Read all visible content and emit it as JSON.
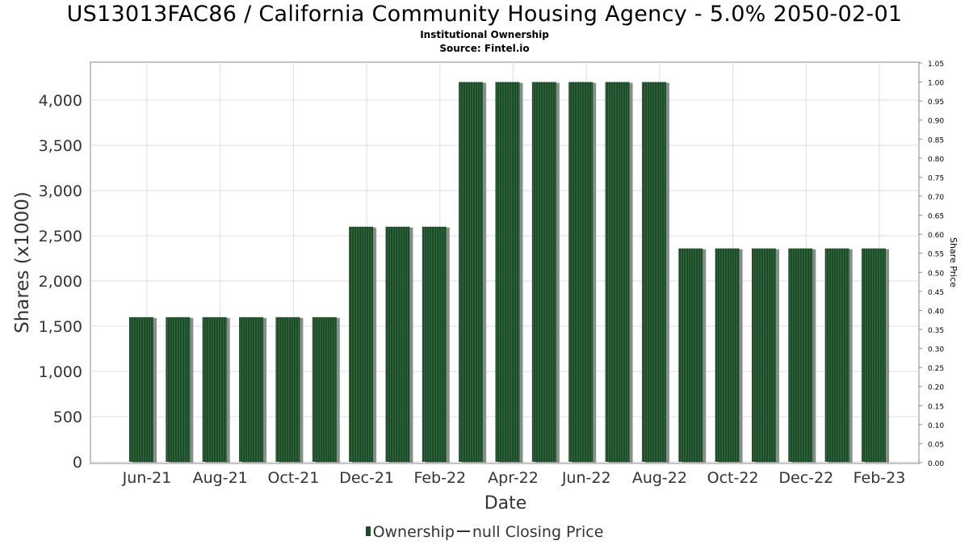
{
  "title": "US13013FAC86 / California Community Housing Agency - 5.0% 2050-02-01",
  "subtitle": "Institutional Ownership",
  "source": "Source: Fintel.io",
  "legend": {
    "ownership_label": "Ownership",
    "price_label": "null Closing Price"
  },
  "colors": {
    "bar": "#1f4a2a",
    "bar_stripe": "#2e6b3c",
    "bar_shadow": "#8c8c8c",
    "grid": "#dddddd"
  },
  "chart_data": {
    "type": "bar",
    "title": "US13013FAC86 / California Community Housing Agency - 5.0% 2050-02-01",
    "xlabel": "Date",
    "ylabel": "Shares (x1000)",
    "y2label": "Share Price",
    "ylim": [
      0,
      4400
    ],
    "y2lim": [
      0,
      1.05
    ],
    "yticks": [
      "0",
      "500",
      "1,000",
      "1,500",
      "2,000",
      "2,500",
      "3,000",
      "3,500",
      "4,000"
    ],
    "y2ticks": [
      "0.00",
      "0.05",
      "0.10",
      "0.15",
      "0.20",
      "0.25",
      "0.30",
      "0.35",
      "0.40",
      "0.45",
      "0.50",
      "0.55",
      "0.60",
      "0.65",
      "0.70",
      "0.75",
      "0.80",
      "0.85",
      "0.90",
      "0.95",
      "1.00",
      "1.05"
    ],
    "xticks": [
      "Jun-21",
      "Aug-21",
      "Oct-21",
      "Dec-21",
      "Feb-22",
      "Apr-22",
      "Jun-22",
      "Aug-22",
      "Oct-22",
      "Dec-22",
      "Feb-23"
    ],
    "grid": true,
    "legend_position": "bottom",
    "series": [
      {
        "name": "Ownership",
        "values": [
          1600,
          1600,
          1600,
          1600,
          1600,
          1600,
          2600,
          2600,
          2600,
          4200,
          4200,
          4200,
          4200,
          4200,
          4200,
          2360,
          2360,
          2360,
          2360,
          2360,
          2360
        ]
      }
    ]
  }
}
